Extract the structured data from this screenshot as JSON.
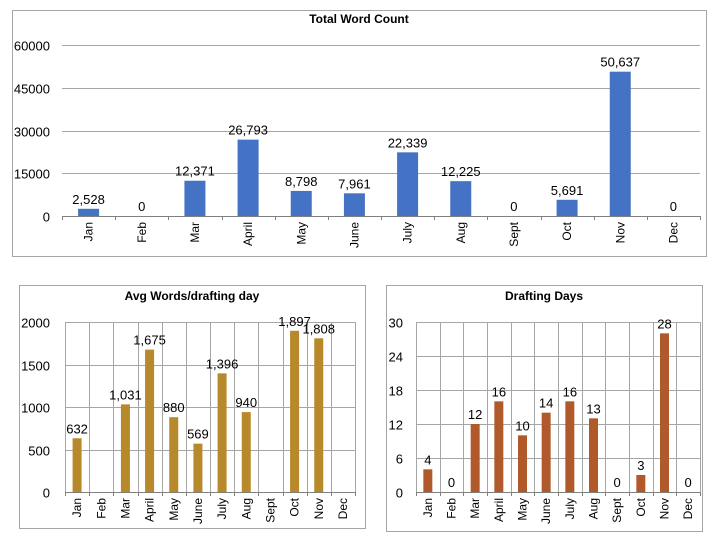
{
  "chart_data": [
    {
      "type": "bar",
      "title": "Total Word Count",
      "categories": [
        "Jan",
        "Feb",
        "Mar",
        "April",
        "May",
        "June",
        "July",
        "Aug",
        "Sept",
        "Oct",
        "Nov",
        "Dec"
      ],
      "values": [
        2528,
        0,
        12371,
        26793,
        8798,
        7961,
        22339,
        12225,
        0,
        5691,
        50637,
        0
      ],
      "data_labels": [
        "2,528",
        "0",
        "12,371",
        "26,793",
        "8,798",
        "7,961",
        "22,339",
        "12,225",
        "0",
        "5,691",
        "50,637",
        "0"
      ],
      "yticks": [
        0,
        15000,
        30000,
        45000,
        60000
      ],
      "ylim": [
        0,
        60000
      ],
      "grid": "horizontal",
      "color": "#4472C4",
      "xlabel": "",
      "ylabel": ""
    },
    {
      "type": "bar",
      "title": "Avg Words/drafting day",
      "categories": [
        "Jan",
        "Feb",
        "Mar",
        "April",
        "May",
        "June",
        "July",
        "Aug",
        "Sept",
        "Oct",
        "Nov",
        "Dec"
      ],
      "values": [
        632,
        null,
        1031,
        1675,
        880,
        569,
        1396,
        940,
        null,
        1897,
        1808,
        null
      ],
      "data_labels": [
        "632",
        "",
        "1,031",
        "1,675",
        "880",
        "569",
        "1,396",
        "940",
        "",
        "1,897",
        "1,808",
        ""
      ],
      "yticks": [
        0,
        500,
        1000,
        1500,
        2000
      ],
      "ylim": [
        0,
        2000
      ],
      "grid": "both",
      "color": "#B8892A",
      "xlabel": "",
      "ylabel": ""
    },
    {
      "type": "bar",
      "title": "Drafting Days",
      "categories": [
        "Jan",
        "Feb",
        "Mar",
        "April",
        "May",
        "June",
        "July",
        "Aug",
        "Sept",
        "Oct",
        "Nov",
        "Dec"
      ],
      "values": [
        4,
        0,
        12,
        16,
        10,
        14,
        16,
        13,
        0,
        3,
        28,
        0
      ],
      "data_labels": [
        "4",
        "0",
        "12",
        "16",
        "10",
        "14",
        "16",
        "13",
        "0",
        "3",
        "28",
        "0"
      ],
      "yticks": [
        0,
        6,
        12,
        18,
        24,
        30
      ],
      "ylim": [
        0,
        30
      ],
      "grid": "both",
      "color": "#B05A2C",
      "xlabel": "",
      "ylabel": ""
    }
  ]
}
